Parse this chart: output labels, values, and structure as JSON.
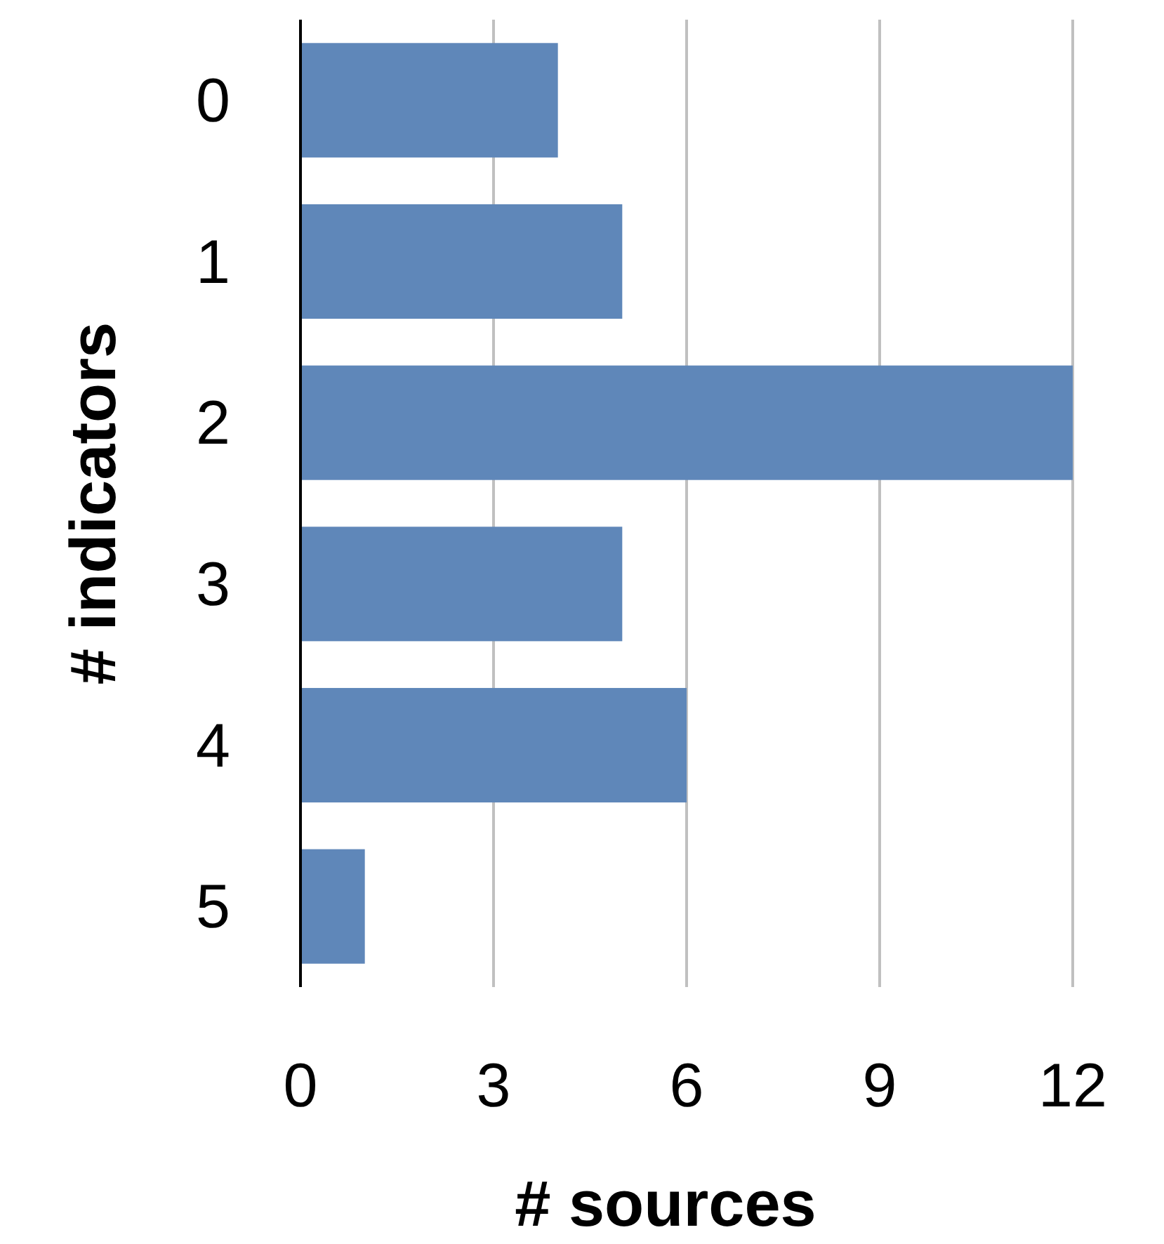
{
  "chart_data": {
    "type": "bar",
    "orientation": "horizontal",
    "xlabel": "# sources",
    "ylabel": "# indicators",
    "categories": [
      "0",
      "1",
      "2",
      "3",
      "4",
      "5"
    ],
    "values": [
      4,
      5,
      12,
      5,
      6,
      1
    ],
    "color": "#5f87b9",
    "xlim": [
      0,
      12
    ],
    "xticks": [
      0,
      3,
      6,
      9,
      12
    ],
    "grid": "x"
  }
}
